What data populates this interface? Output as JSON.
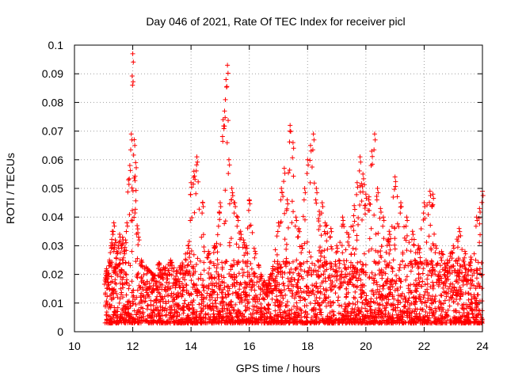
{
  "chart_data": {
    "type": "scatter",
    "title": "Day 046 of 2021, Rate Of TEC Index for receiver picl",
    "xlabel": "GPS time / hours",
    "ylabel": "ROTI / TECUs",
    "xlim": [
      10,
      24
    ],
    "ylim": [
      0,
      0.1
    ],
    "x_ticks": [
      "10",
      "12",
      "14",
      "16",
      "18",
      "20",
      "22",
      "24"
    ],
    "y_ticks": [
      "0",
      "0.01",
      "0.02",
      "0.03",
      "0.04",
      "0.05",
      "0.06",
      "0.07",
      "0.08",
      "0.09",
      "0.1"
    ],
    "grid": true,
    "marker": "+",
    "color": "#ff0000",
    "series": [
      {
        "x": [
          11.05,
          11.1,
          11.15,
          11.2,
          11.25,
          11.3,
          11.35,
          11.4,
          11.45,
          11.5,
          11.55,
          11.6,
          11.65,
          11.7,
          11.75,
          11.8,
          11.85,
          11.9,
          11.95,
          12.0,
          12.05,
          12.1,
          12.15,
          12.2,
          12.3,
          12.5,
          12.7,
          12.9,
          13.1,
          13.3,
          13.5,
          13.7,
          13.9,
          14.0,
          14.1,
          14.2,
          14.4,
          14.6,
          14.8,
          15.0,
          15.1,
          15.15,
          15.2,
          15.25,
          15.3,
          15.4,
          15.5,
          15.6,
          15.7,
          15.8,
          15.9,
          16.0,
          16.2,
          16.4,
          16.6,
          16.8,
          17.0,
          17.1,
          17.2,
          17.3,
          17.4,
          17.5,
          17.6,
          17.7,
          17.8,
          17.9,
          18.0,
          18.1,
          18.2,
          18.3,
          18.4,
          18.5,
          18.6,
          18.8,
          19.0,
          19.2,
          19.4,
          19.6,
          19.7,
          19.8,
          19.9,
          20.0,
          20.1,
          20.2,
          20.3,
          20.4,
          20.5,
          20.6,
          20.8,
          21.0,
          21.2,
          21.4,
          21.6,
          21.8,
          22.0,
          22.2,
          22.3,
          22.4,
          22.6,
          22.8,
          23.0,
          23.2,
          23.4,
          23.6,
          23.8,
          23.9,
          24.0
        ],
        "y": [
          0.018,
          0.022,
          0.02,
          0.025,
          0.03,
          0.035,
          0.038,
          0.032,
          0.028,
          0.03,
          0.034,
          0.03,
          0.033,
          0.028,
          0.032,
          0.038,
          0.053,
          0.058,
          0.069,
          0.097,
          0.067,
          0.059,
          0.037,
          0.033,
          0.025,
          0.022,
          0.02,
          0.024,
          0.022,
          0.025,
          0.021,
          0.024,
          0.03,
          0.052,
          0.056,
          0.061,
          0.045,
          0.028,
          0.03,
          0.045,
          0.074,
          0.077,
          0.088,
          0.093,
          0.06,
          0.05,
          0.045,
          0.04,
          0.035,
          0.032,
          0.03,
          0.046,
          0.028,
          0.02,
          0.016,
          0.022,
          0.038,
          0.05,
          0.057,
          0.046,
          0.072,
          0.066,
          0.04,
          0.036,
          0.03,
          0.05,
          0.06,
          0.065,
          0.069,
          0.05,
          0.042,
          0.045,
          0.038,
          0.036,
          0.03,
          0.04,
          0.034,
          0.044,
          0.052,
          0.061,
          0.055,
          0.048,
          0.046,
          0.063,
          0.069,
          0.05,
          0.043,
          0.04,
          0.035,
          0.054,
          0.045,
          0.04,
          0.035,
          0.03,
          0.045,
          0.049,
          0.048,
          0.03,
          0.028,
          0.025,
          0.03,
          0.036,
          0.028,
          0.026,
          0.04,
          0.043,
          0.049
        ]
      }
    ]
  }
}
